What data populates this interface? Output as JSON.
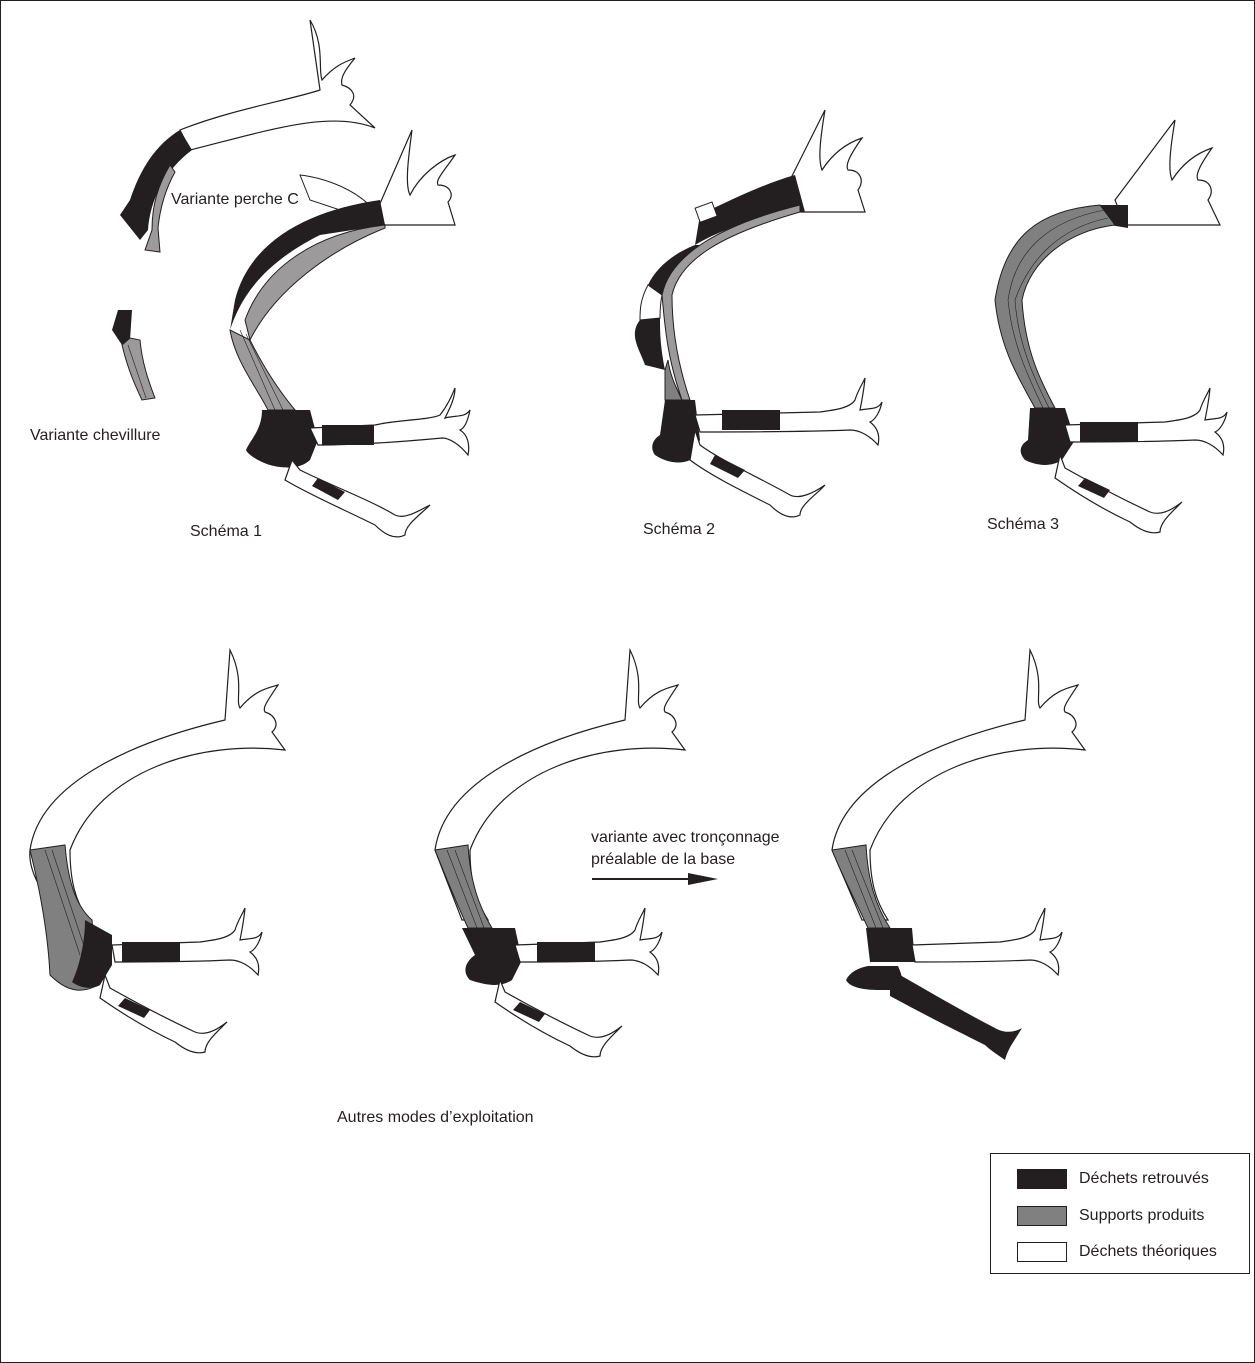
{
  "labels": {
    "variante_perche_c": "Variante perche C",
    "variante_chevillure": "Variante chevillure",
    "schema_1": "Schéma 1",
    "schema_2": "Schéma 2",
    "schema_3": "Schéma 3",
    "variante_troncon_line1": "variante avec tronçonnage",
    "variante_troncon_line2": "préalable de la base",
    "autres_modes": "Autres modes d’exploitation"
  },
  "legend": [
    {
      "label": "Déchets retrouvés",
      "color": "#231f20"
    },
    {
      "label": "Supports produits",
      "color": "#808080"
    },
    {
      "label": "Déchets théoriques",
      "color": "#ffffff"
    }
  ],
  "colors": {
    "black": "#231f20",
    "dark_gray": "#808080",
    "light_gray": "#9d9a9c",
    "white": "#ffffff"
  }
}
